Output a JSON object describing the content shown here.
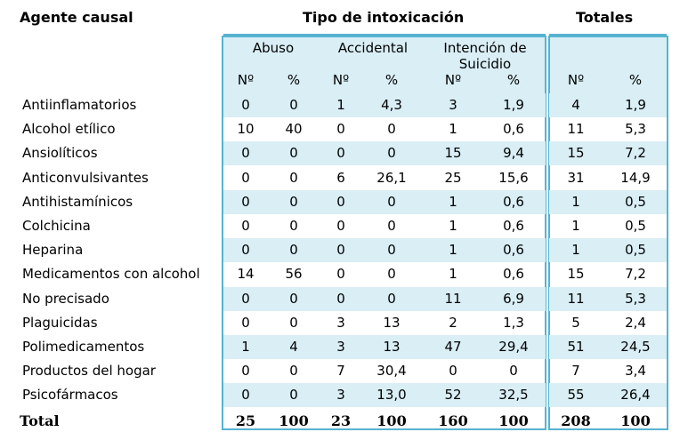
{
  "header": {
    "agent_label": "Agente causal",
    "tipo_label": "Tipo de intoxicación",
    "totales_label": "Totales"
  },
  "groups": {
    "abuso": "Abuso",
    "accidental": "Accidental",
    "suicidio": "Intención de Suicidio"
  },
  "subheaders": {
    "n": "Nº",
    "pct": "%"
  },
  "rows": [
    {
      "agent": "Antiinflamatorios",
      "cells": [
        "0",
        "0",
        "1",
        "4,3",
        "3",
        "1,9",
        "4",
        "1,9"
      ]
    },
    {
      "agent": "Alcohol etílico",
      "cells": [
        "10",
        "40",
        "0",
        "0",
        "1",
        "0,6",
        "11",
        "5,3"
      ]
    },
    {
      "agent": "Ansiolíticos",
      "cells": [
        "0",
        "0",
        "0",
        "0",
        "15",
        "9,4",
        "15",
        "7,2"
      ]
    },
    {
      "agent": "Anticonvulsivantes",
      "cells": [
        "0",
        "0",
        "6",
        "26,1",
        "25",
        "15,6",
        "31",
        "14,9"
      ]
    },
    {
      "agent": "Antihistamínicos",
      "cells": [
        "0",
        "0",
        "0",
        "0",
        "1",
        "0,6",
        "1",
        "0,5"
      ]
    },
    {
      "agent": "Colchicina",
      "cells": [
        "0",
        "0",
        "0",
        "0",
        "1",
        "0,6",
        "1",
        "0,5"
      ]
    },
    {
      "agent": "Heparina",
      "cells": [
        "0",
        "0",
        "0",
        "0",
        "1",
        "0,6",
        "1",
        "0,5"
      ]
    },
    {
      "agent": "Medicamentos con alcohol",
      "cells": [
        "14",
        "56",
        "0",
        "0",
        "1",
        "0,6",
        "15",
        "7,2"
      ]
    },
    {
      "agent": "No precisado",
      "cells": [
        "0",
        "0",
        "0",
        "0",
        "11",
        "6,9",
        "11",
        "5,3"
      ]
    },
    {
      "agent": "Plaguicidas",
      "cells": [
        "0",
        "0",
        "3",
        "13",
        "2",
        "1,3",
        "5",
        "2,4"
      ]
    },
    {
      "agent": "Polimedicamentos",
      "cells": [
        "1",
        "4",
        "3",
        "13",
        "47",
        "29,4",
        "51",
        "24,5"
      ]
    },
    {
      "agent": "Productos del hogar",
      "cells": [
        "0",
        "0",
        "7",
        "30,4",
        "0",
        "0",
        "7",
        "3,4"
      ]
    },
    {
      "agent": "Psicofármacos",
      "cells": [
        "0",
        "0",
        "3",
        "13,0",
        "52",
        "32,5",
        "55",
        "26,4"
      ]
    }
  ],
  "total": {
    "label": "Total",
    "cells": [
      "25",
      "100",
      "23",
      "100",
      "160",
      "100",
      "208",
      "100"
    ]
  },
  "colors": {
    "band": "#d9eef5",
    "rule": "#56b3d0"
  }
}
